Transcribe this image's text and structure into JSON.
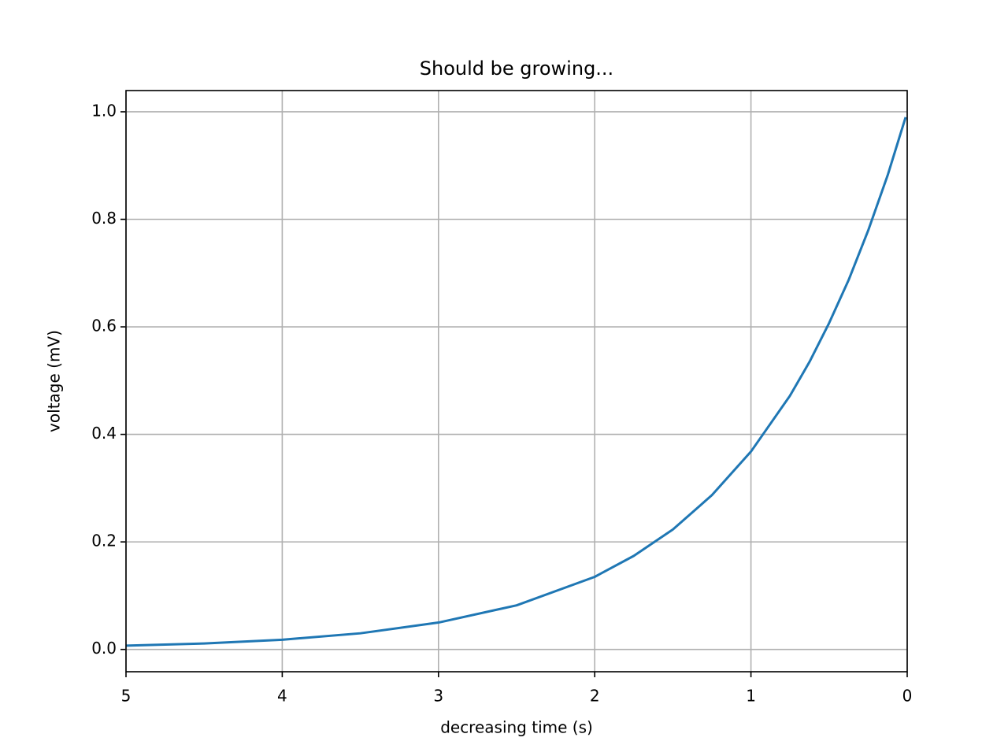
{
  "chart_data": {
    "type": "line",
    "title": "Should be growing...",
    "xlabel": "decreasing time (s)",
    "ylabel": "voltage (mV)",
    "x": [
      0.01,
      0.125,
      0.25,
      0.375,
      0.5,
      0.625,
      0.75,
      1,
      1.25,
      1.5,
      1.75,
      2,
      2.5,
      3,
      3.5,
      4,
      4.5,
      5
    ],
    "series": [
      {
        "name": "voltage",
        "color": "#1f77b4",
        "values": [
          0.99,
          0.882,
          0.779,
          0.687,
          0.607,
          0.535,
          0.472,
          0.368,
          0.287,
          0.223,
          0.174,
          0.135,
          0.082,
          0.05,
          0.03,
          0.018,
          0.011,
          0.007
        ]
      }
    ],
    "xlim": [
      5,
      0
    ],
    "xticks": [
      5,
      4,
      3,
      2,
      1,
      0
    ],
    "ylim": [
      -0.0415,
      1.0395
    ],
    "yticks": [
      {
        "value": 0,
        "label": "0.0"
      },
      {
        "value": 0.2,
        "label": "0.2"
      },
      {
        "value": 0.4,
        "label": "0.4"
      },
      {
        "value": 0.6,
        "label": "0.6"
      },
      {
        "value": 0.8,
        "label": "0.8"
      },
      {
        "value": 1,
        "label": "1.0"
      }
    ],
    "grid": true
  }
}
